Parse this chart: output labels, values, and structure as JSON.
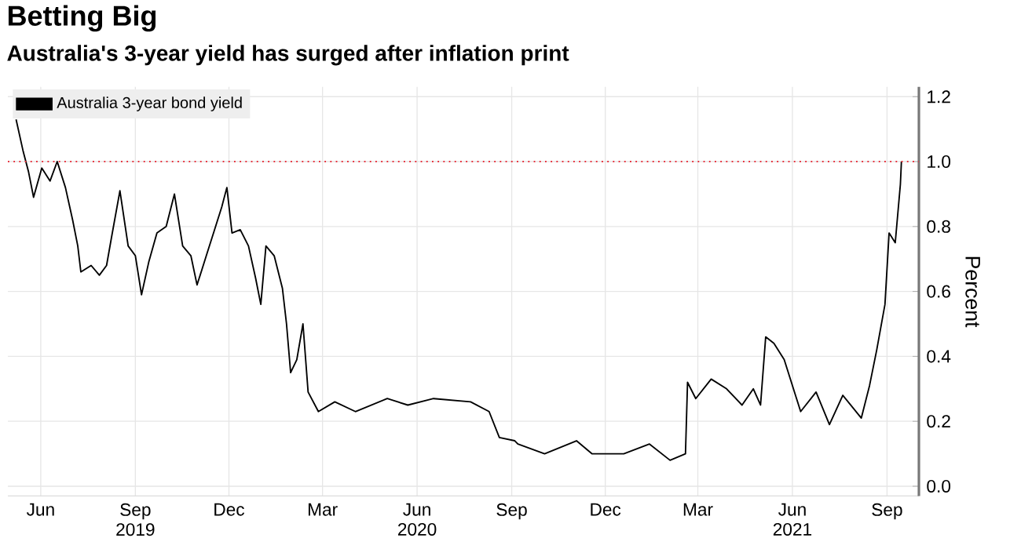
{
  "chart_data": {
    "type": "line",
    "title": "Betting Big",
    "subtitle": "Australia's 3-year yield has surged after inflation print",
    "ylabel": "Percent",
    "x": [
      "2019-05-08",
      "2019-05-15",
      "2019-05-20",
      "2019-05-25",
      "2019-06-02",
      "2019-06-10",
      "2019-06-17",
      "2019-06-25",
      "2019-07-02",
      "2019-07-07",
      "2019-07-10",
      "2019-07-20",
      "2019-07-28",
      "2019-08-04",
      "2019-08-09",
      "2019-08-17",
      "2019-08-25",
      "2019-09-01",
      "2019-09-07",
      "2019-09-14",
      "2019-09-22",
      "2019-10-01",
      "2019-10-09",
      "2019-10-17",
      "2019-10-25",
      "2019-10-31",
      "2019-11-09",
      "2019-11-17",
      "2019-11-24",
      "2019-11-29",
      "2019-12-04",
      "2019-12-12",
      "2019-12-20",
      "2019-12-27",
      "2020-01-01",
      "2020-01-06",
      "2020-01-14",
      "2020-01-22",
      "2020-01-26",
      "2020-01-30",
      "2020-02-05",
      "2020-02-11",
      "2020-02-16",
      "2020-02-26",
      "2020-03-13",
      "2020-04-02",
      "2020-05-03",
      "2020-05-23",
      "2020-06-17",
      "2020-07-23",
      "2020-08-10",
      "2020-08-20",
      "2020-09-04",
      "2020-09-07",
      "2020-10-03",
      "2020-11-03",
      "2020-11-18",
      "2020-12-19",
      "2021-01-13",
      "2021-02-02",
      "2021-02-17",
      "2021-02-19",
      "2021-02-27",
      "2021-03-14",
      "2021-03-29",
      "2021-04-13",
      "2021-04-24",
      "2021-05-01",
      "2021-05-06",
      "2021-05-14",
      "2021-05-24",
      "2021-06-09",
      "2021-06-24",
      "2021-07-07",
      "2021-07-20",
      "2021-08-07",
      "2021-08-15",
      "2021-08-22",
      "2021-08-30",
      "2021-09-03",
      "2021-09-09",
      "2021-09-14",
      "2021-09-15"
    ],
    "series": [
      {
        "name": "Australia 3-year bond yield",
        "color": "#000000",
        "values": [
          1.13,
          1.03,
          0.97,
          0.89,
          0.98,
          0.94,
          1.0,
          0.92,
          0.82,
          0.74,
          0.66,
          0.68,
          0.65,
          0.68,
          0.77,
          0.91,
          0.74,
          0.71,
          0.59,
          0.69,
          0.78,
          0.8,
          0.9,
          0.74,
          0.71,
          0.62,
          0.71,
          0.79,
          0.86,
          0.92,
          0.78,
          0.79,
          0.74,
          0.64,
          0.56,
          0.74,
          0.71,
          0.61,
          0.5,
          0.35,
          0.39,
          0.5,
          0.29,
          0.23,
          0.26,
          0.23,
          0.27,
          0.25,
          0.27,
          0.26,
          0.23,
          0.15,
          0.14,
          0.13,
          0.1,
          0.14,
          0.1,
          0.1,
          0.13,
          0.08,
          0.1,
          0.32,
          0.27,
          0.33,
          0.3,
          0.25,
          0.3,
          0.25,
          0.46,
          0.44,
          0.39,
          0.23,
          0.29,
          0.19,
          0.28,
          0.21,
          0.31,
          0.42,
          0.56,
          0.78,
          0.75,
          0.93,
          1.0
        ]
      }
    ],
    "xlim": [
      "2019-04-30",
      "2021-10-02"
    ],
    "xticks": [
      {
        "value": "2019-06-01",
        "label": "Jun"
      },
      {
        "value": "2019-09-01",
        "label": "Sep 2019"
      },
      {
        "value": "2019-12-01",
        "label": "Dec"
      },
      {
        "value": "2020-03-01",
        "label": "Mar"
      },
      {
        "value": "2020-06-01",
        "label": "Jun 2020"
      },
      {
        "value": "2020-09-01",
        "label": "Sep"
      },
      {
        "value": "2020-12-01",
        "label": "Dec"
      },
      {
        "value": "2021-03-01",
        "label": "Mar"
      },
      {
        "value": "2021-06-01",
        "label": "Jun 2021"
      },
      {
        "value": "2021-09-01",
        "label": "Sep"
      }
    ],
    "ylim": [
      -0.03,
      1.23
    ],
    "yticks": [
      {
        "value": 0.0,
        "label": "0.0"
      },
      {
        "value": 0.2,
        "label": "0.2"
      },
      {
        "value": 0.4,
        "label": "0.4"
      },
      {
        "value": 0.6,
        "label": "0.6"
      },
      {
        "value": 0.8,
        "label": "0.8"
      },
      {
        "value": 1.0,
        "label": "1.0"
      },
      {
        "value": 1.2,
        "label": "1.2"
      }
    ],
    "ref_lines": [
      {
        "axis": "y",
        "value": 1.0,
        "color": "#e8303c",
        "line_style": "dotted"
      }
    ],
    "grid": true,
    "legend": "top left"
  }
}
